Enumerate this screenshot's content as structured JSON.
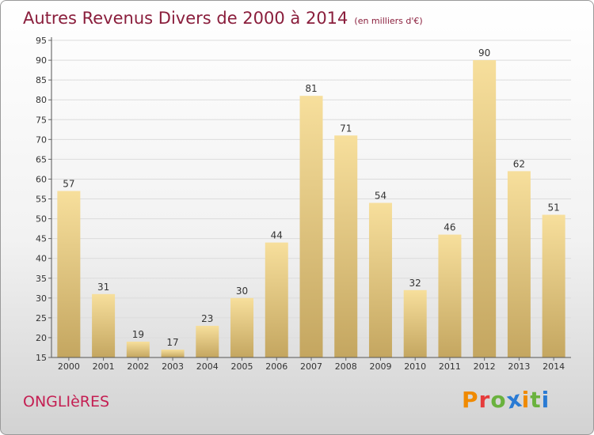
{
  "header": {
    "title": "Autres Revenus Divers de 2000 à 2014",
    "subtitle": "(en milliers d'€)"
  },
  "footer": {
    "place": "ONGLIèRES",
    "logo_text": "Proxiti"
  },
  "colors": {
    "title": "#8a1e3c",
    "place": "#c41e52",
    "bar_top": "#f7df9c",
    "bar_bottom": "#c4a660",
    "logo": [
      "#f08a00",
      "#e63b3b",
      "#6ab23e",
      "#2a7bd4",
      "#f08a00",
      "#6ab23e",
      "#2a7bd4"
    ]
  },
  "chart_data": {
    "type": "bar",
    "title": "Autres Revenus Divers de 2000 à 2014",
    "subtitle": "(en milliers d'€)",
    "categories": [
      "2000",
      "2001",
      "2002",
      "2003",
      "2004",
      "2005",
      "2006",
      "2007",
      "2008",
      "2009",
      "2010",
      "2011",
      "2012",
      "2013",
      "2014"
    ],
    "values": [
      57,
      31,
      19,
      17,
      23,
      30,
      44,
      81,
      71,
      54,
      32,
      46,
      90,
      62,
      51
    ],
    "ylim": [
      15,
      95
    ],
    "yticks": [
      15,
      20,
      25,
      30,
      35,
      40,
      45,
      50,
      55,
      60,
      65,
      70,
      75,
      80,
      85,
      90,
      95
    ],
    "grid": true,
    "data_labels": true
  }
}
